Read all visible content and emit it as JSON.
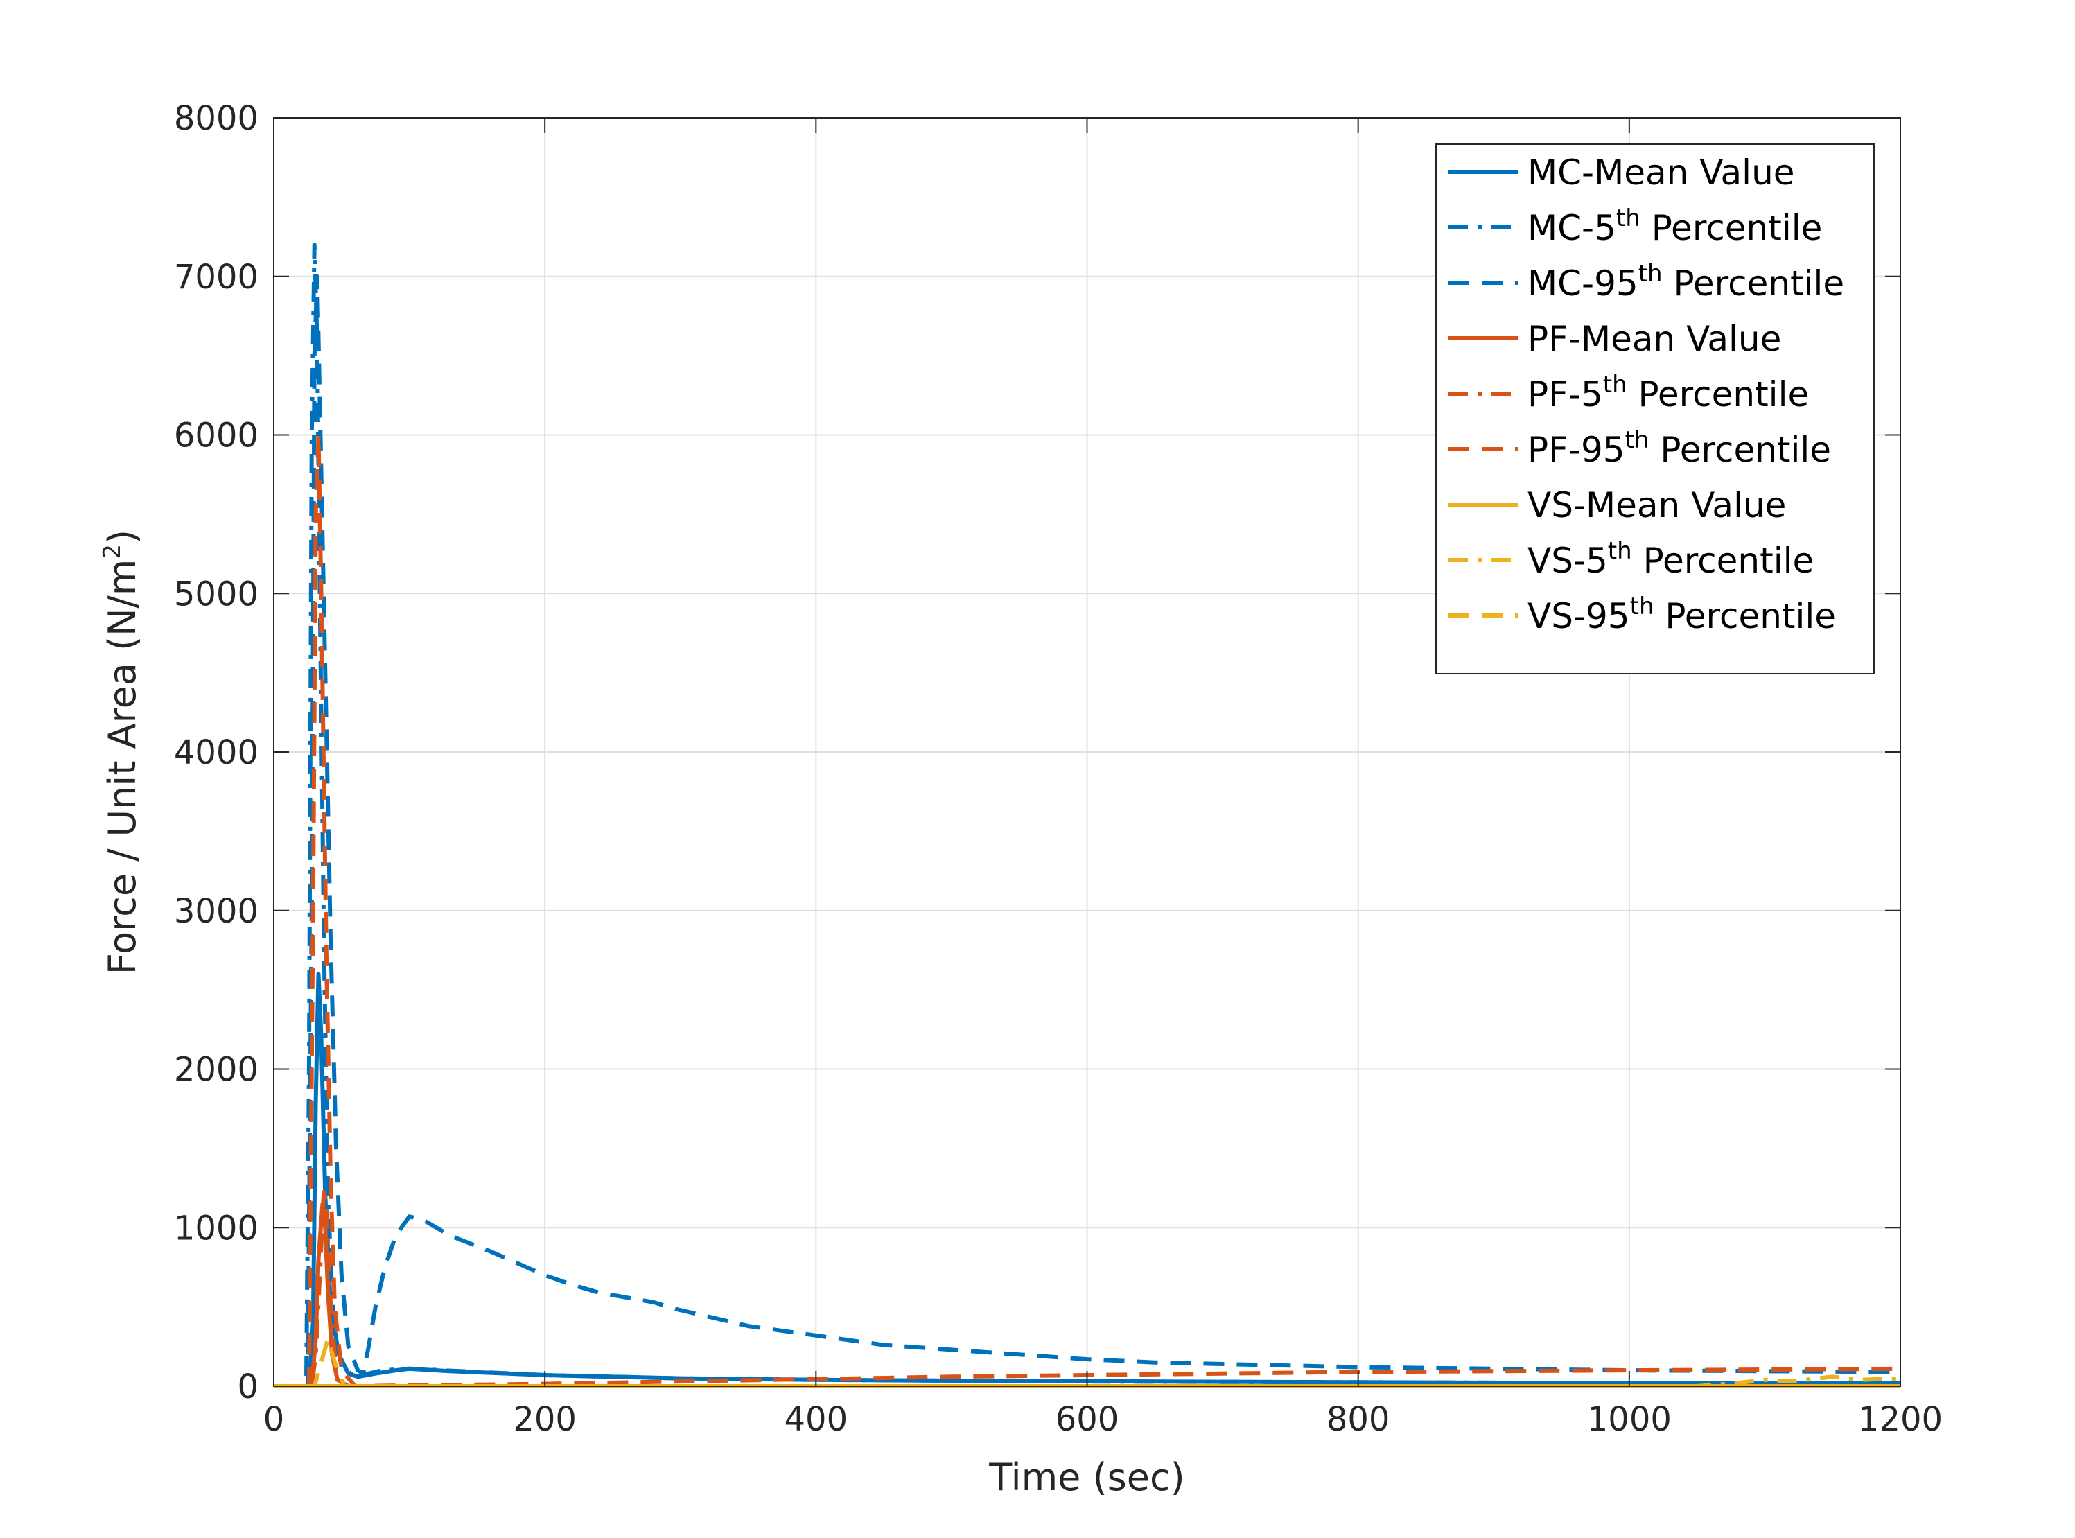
{
  "chart_data": {
    "type": "line",
    "xlabel": "Time (sec)",
    "ylabel_parts": {
      "main": "Force / Unit Area (N/m",
      "sup": "2",
      "tail": ")"
    },
    "xlim": [
      0,
      1200
    ],
    "ylim": [
      0,
      8000
    ],
    "xticks": [
      0,
      200,
      400,
      600,
      800,
      1000,
      1200
    ],
    "yticks": [
      0,
      1000,
      2000,
      3000,
      4000,
      5000,
      6000,
      7000,
      8000
    ],
    "grid": true,
    "legend_position": "top-right",
    "colors": {
      "blue": "#0072BD",
      "orange": "#D95319",
      "yellow": "#EDB120",
      "axis": "#262626",
      "grid": "#dfdfdf"
    },
    "series": [
      {
        "legend": {
          "prefix": "MC-Mean Value",
          "sup": "",
          "suffix": ""
        },
        "color": "#0072BD",
        "style": "solid",
        "points": [
          [
            0,
            0
          ],
          [
            26,
            0
          ],
          [
            29,
            400
          ],
          [
            31,
            1800
          ],
          [
            33,
            2600
          ],
          [
            35,
            2200
          ],
          [
            38,
            1200
          ],
          [
            42,
            500
          ],
          [
            48,
            200
          ],
          [
            55,
            80
          ],
          [
            62,
            60
          ],
          [
            75,
            80
          ],
          [
            90,
            100
          ],
          [
            100,
            110
          ],
          [
            130,
            95
          ],
          [
            200,
            70
          ],
          [
            300,
            50
          ],
          [
            400,
            40
          ],
          [
            500,
            35
          ],
          [
            700,
            28
          ],
          [
            900,
            22
          ],
          [
            1200,
            18
          ]
        ]
      },
      {
        "legend": {
          "prefix": "MC-5",
          "sup": "th",
          "suffix": " Percentile"
        },
        "color": "#0072BD",
        "style": "dashdot",
        "points": [
          [
            0,
            0
          ],
          [
            24,
            0
          ],
          [
            26,
            2000
          ],
          [
            28,
            6000
          ],
          [
            30,
            7200
          ],
          [
            32,
            6600
          ],
          [
            34,
            5000
          ],
          [
            37,
            2800
          ],
          [
            40,
            1200
          ],
          [
            44,
            400
          ],
          [
            50,
            120
          ],
          [
            60,
            60
          ],
          [
            80,
            100
          ],
          [
            100,
            110
          ],
          [
            150,
            90
          ],
          [
            200,
            70
          ],
          [
            300,
            50
          ],
          [
            400,
            40
          ],
          [
            600,
            30
          ],
          [
            800,
            25
          ],
          [
            1200,
            15
          ]
        ]
      },
      {
        "legend": {
          "prefix": "MC-95",
          "sup": "th",
          "suffix": " Percentile"
        },
        "color": "#0072BD",
        "style": "dashed",
        "points": [
          [
            0,
            0
          ],
          [
            25,
            0
          ],
          [
            28,
            3000
          ],
          [
            30,
            6500
          ],
          [
            32,
            7000
          ],
          [
            34,
            6200
          ],
          [
            38,
            4500
          ],
          [
            42,
            2800
          ],
          [
            46,
            1500
          ],
          [
            50,
            700
          ],
          [
            55,
            250
          ],
          [
            62,
            100
          ],
          [
            66,
            80
          ],
          [
            70,
            250
          ],
          [
            75,
            500
          ],
          [
            82,
            750
          ],
          [
            90,
            950
          ],
          [
            100,
            1070
          ],
          [
            110,
            1050
          ],
          [
            130,
            950
          ],
          [
            160,
            850
          ],
          [
            200,
            700
          ],
          [
            220,
            640
          ],
          [
            240,
            590
          ],
          [
            260,
            560
          ],
          [
            280,
            530
          ],
          [
            300,
            480
          ],
          [
            350,
            380
          ],
          [
            400,
            320
          ],
          [
            450,
            260
          ],
          [
            500,
            230
          ],
          [
            550,
            200
          ],
          [
            600,
            170
          ],
          [
            650,
            150
          ],
          [
            700,
            140
          ],
          [
            800,
            120
          ],
          [
            900,
            110
          ],
          [
            1000,
            100
          ],
          [
            1100,
            95
          ],
          [
            1200,
            90
          ]
        ]
      },
      {
        "legend": {
          "prefix": "PF-Mean Value",
          "sup": "",
          "suffix": ""
        },
        "color": "#D95319",
        "style": "solid",
        "points": [
          [
            0,
            0
          ],
          [
            28,
            0
          ],
          [
            31,
            300
          ],
          [
            33,
            800
          ],
          [
            36,
            1150
          ],
          [
            38,
            1000
          ],
          [
            40,
            600
          ],
          [
            43,
            200
          ],
          [
            47,
            40
          ],
          [
            55,
            0
          ],
          [
            1200,
            0
          ]
        ]
      },
      {
        "legend": {
          "prefix": "PF-5",
          "sup": "th",
          "suffix": " Percentile"
        },
        "color": "#D95319",
        "style": "dashdot",
        "points": [
          [
            0,
            0
          ],
          [
            28,
            0
          ],
          [
            31,
            200
          ],
          [
            34,
            700
          ],
          [
            37,
            1250
          ],
          [
            39,
            1100
          ],
          [
            42,
            500
          ],
          [
            46,
            100
          ],
          [
            52,
            0
          ],
          [
            1200,
            0
          ]
        ]
      },
      {
        "legend": {
          "prefix": "PF-95",
          "sup": "th",
          "suffix": " Percentile"
        },
        "color": "#D95319",
        "style": "dashed",
        "points": [
          [
            0,
            0
          ],
          [
            26,
            0
          ],
          [
            29,
            3000
          ],
          [
            31,
            5500
          ],
          [
            33,
            6000
          ],
          [
            35,
            5000
          ],
          [
            37,
            3800
          ],
          [
            39,
            2600
          ],
          [
            42,
            1300
          ],
          [
            45,
            500
          ],
          [
            50,
            100
          ],
          [
            60,
            0
          ],
          [
            100,
            5
          ],
          [
            200,
            15
          ],
          [
            300,
            30
          ],
          [
            400,
            45
          ],
          [
            500,
            60
          ],
          [
            600,
            70
          ],
          [
            700,
            80
          ],
          [
            800,
            90
          ],
          [
            900,
            95
          ],
          [
            1000,
            100
          ],
          [
            1100,
            105
          ],
          [
            1200,
            110
          ]
        ]
      },
      {
        "legend": {
          "prefix": "VS-Mean Value",
          "sup": "",
          "suffix": ""
        },
        "color": "#EDB120",
        "style": "solid",
        "points": [
          [
            0,
            0
          ],
          [
            1200,
            0
          ]
        ]
      },
      {
        "legend": {
          "prefix": "VS-5",
          "sup": "th",
          "suffix": " Percentile"
        },
        "color": "#EDB120",
        "style": "dashdot",
        "points": [
          [
            0,
            0
          ],
          [
            1050,
            0
          ],
          [
            1080,
            20
          ],
          [
            1100,
            40
          ],
          [
            1120,
            30
          ],
          [
            1150,
            60
          ],
          [
            1170,
            40
          ],
          [
            1200,
            50
          ]
        ]
      },
      {
        "legend": {
          "prefix": "VS-95",
          "sup": "th",
          "suffix": " Percentile"
        },
        "color": "#EDB120",
        "style": "dashed",
        "points": [
          [
            0,
            0
          ],
          [
            30,
            0
          ],
          [
            40,
            300
          ],
          [
            45,
            150
          ],
          [
            52,
            0
          ],
          [
            1200,
            0
          ]
        ]
      }
    ]
  }
}
